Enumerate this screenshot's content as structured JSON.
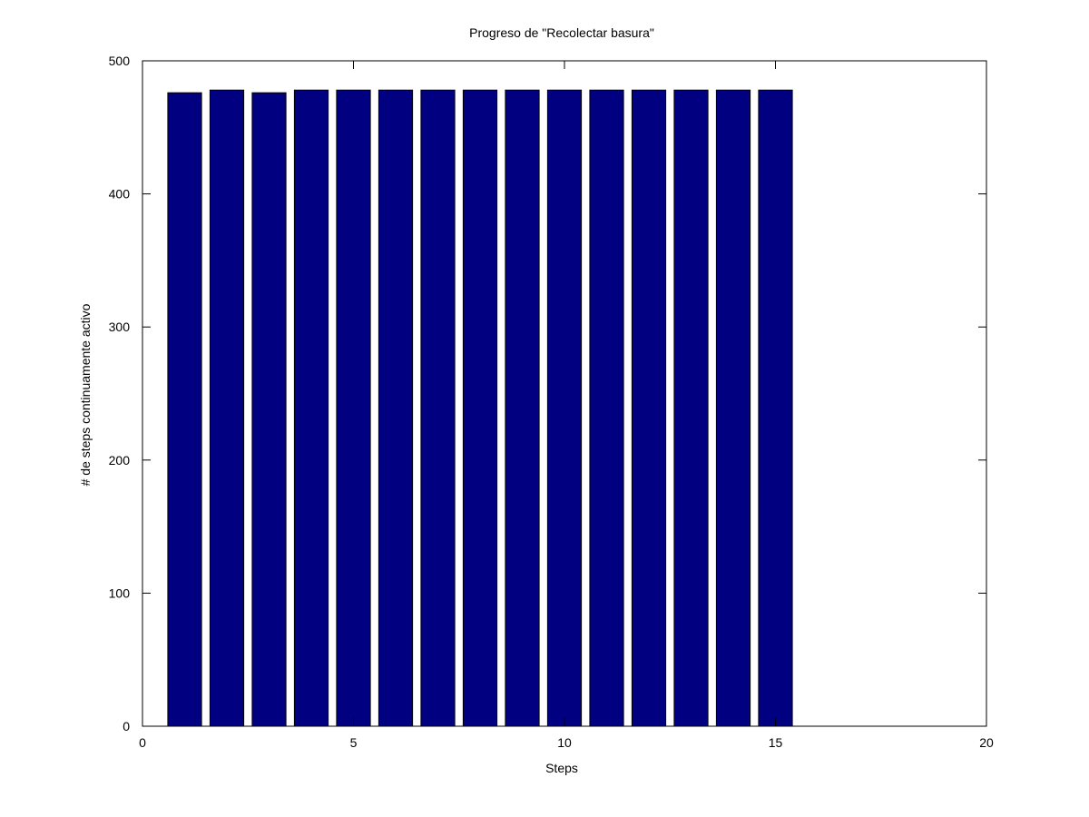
{
  "chart_data": {
    "type": "bar",
    "title": "Progreso de \"Recolectar basura\"",
    "xlabel": "Steps",
    "ylabel": "# de steps continuamente activo",
    "xlim": [
      0,
      20
    ],
    "ylim": [
      0,
      500
    ],
    "xticks": [
      0,
      5,
      10,
      15,
      20
    ],
    "yticks": [
      0,
      100,
      200,
      300,
      400,
      500
    ],
    "x": [
      1,
      2,
      3,
      4,
      5,
      6,
      7,
      8,
      9,
      10,
      11,
      12,
      13,
      14,
      15
    ],
    "values": [
      476,
      478,
      476,
      478,
      478,
      478,
      478,
      478,
      478,
      478,
      478,
      478,
      478,
      478,
      478
    ],
    "bar_width": 0.8,
    "bar_color": "#000080",
    "grid": false,
    "legend": "none"
  }
}
